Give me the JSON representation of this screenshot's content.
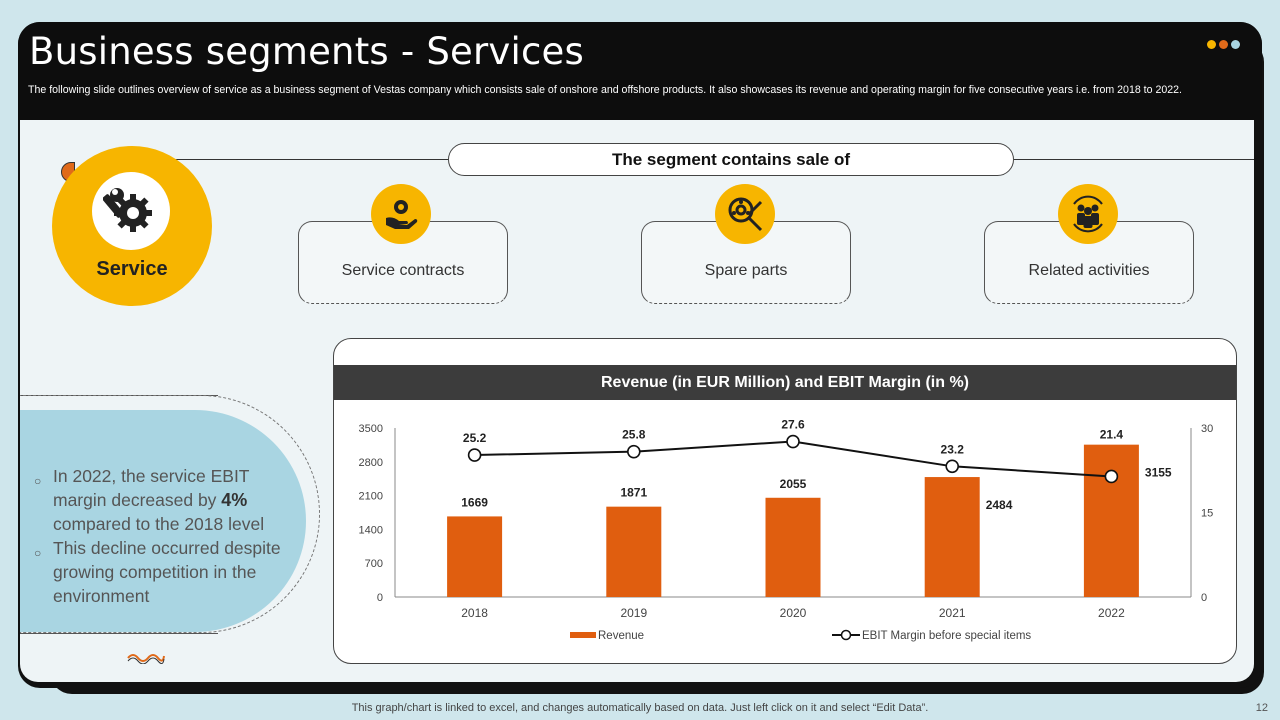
{
  "slide": {
    "title": "Business segments - Services",
    "subtitle": "The following slide outlines overview of service as a business segment of Vestas company which consists sale of onshore and offshore products. It also showcases its revenue and operating margin for five consecutive years i.e. from 2018 to 2022.",
    "footer_note": "This graph/chart is linked to excel,  and changes automatically based on data. Just left click on it and select “Edit Data”.",
    "page_number": "12",
    "header_dots": [
      "#f7b500",
      "#e06a1a",
      "#a9d5e2"
    ]
  },
  "service": {
    "label": "Service",
    "icon": "wrench-gear-icon"
  },
  "segment": {
    "heading": "The segment contains sale of",
    "items": [
      {
        "label": "Service contracts",
        "icon": "hand-gear-icon"
      },
      {
        "label": "Spare parts",
        "icon": "tools-gear-icon"
      },
      {
        "label": "Related activities",
        "icon": "team-cycle-icon"
      }
    ]
  },
  "insights": {
    "b1_pre": "In 2022, the service EBIT margin decreased by ",
    "b1_bold": "4%",
    "b1_post": " compared to the 2018 level",
    "b2": "This decline occurred despite growing competition in the environment"
  },
  "chart_data": {
    "type": "bar",
    "title": "Revenue (in EUR Million) and EBIT Margin (in %)",
    "categories": [
      "2018",
      "2019",
      "2020",
      "2021",
      "2022"
    ],
    "series": [
      {
        "name": "Revenue",
        "type": "bar",
        "axis": "left",
        "color": "#e05e0f",
        "values": [
          1669,
          1871,
          2055,
          2484,
          3155
        ]
      },
      {
        "name": "EBIT Margin before special items",
        "type": "line",
        "axis": "right",
        "color": "#111111",
        "values": [
          25.2,
          25.8,
          27.6,
          23.2,
          21.4
        ]
      }
    ],
    "ylim": [
      0,
      3500
    ],
    "yticks": [
      "0",
      "700",
      "1400",
      "2100",
      "2800",
      "3500"
    ],
    "y2lim": [
      0,
      30
    ],
    "y2ticks": [
      "0",
      "15",
      "30"
    ],
    "legend": "bottom"
  }
}
